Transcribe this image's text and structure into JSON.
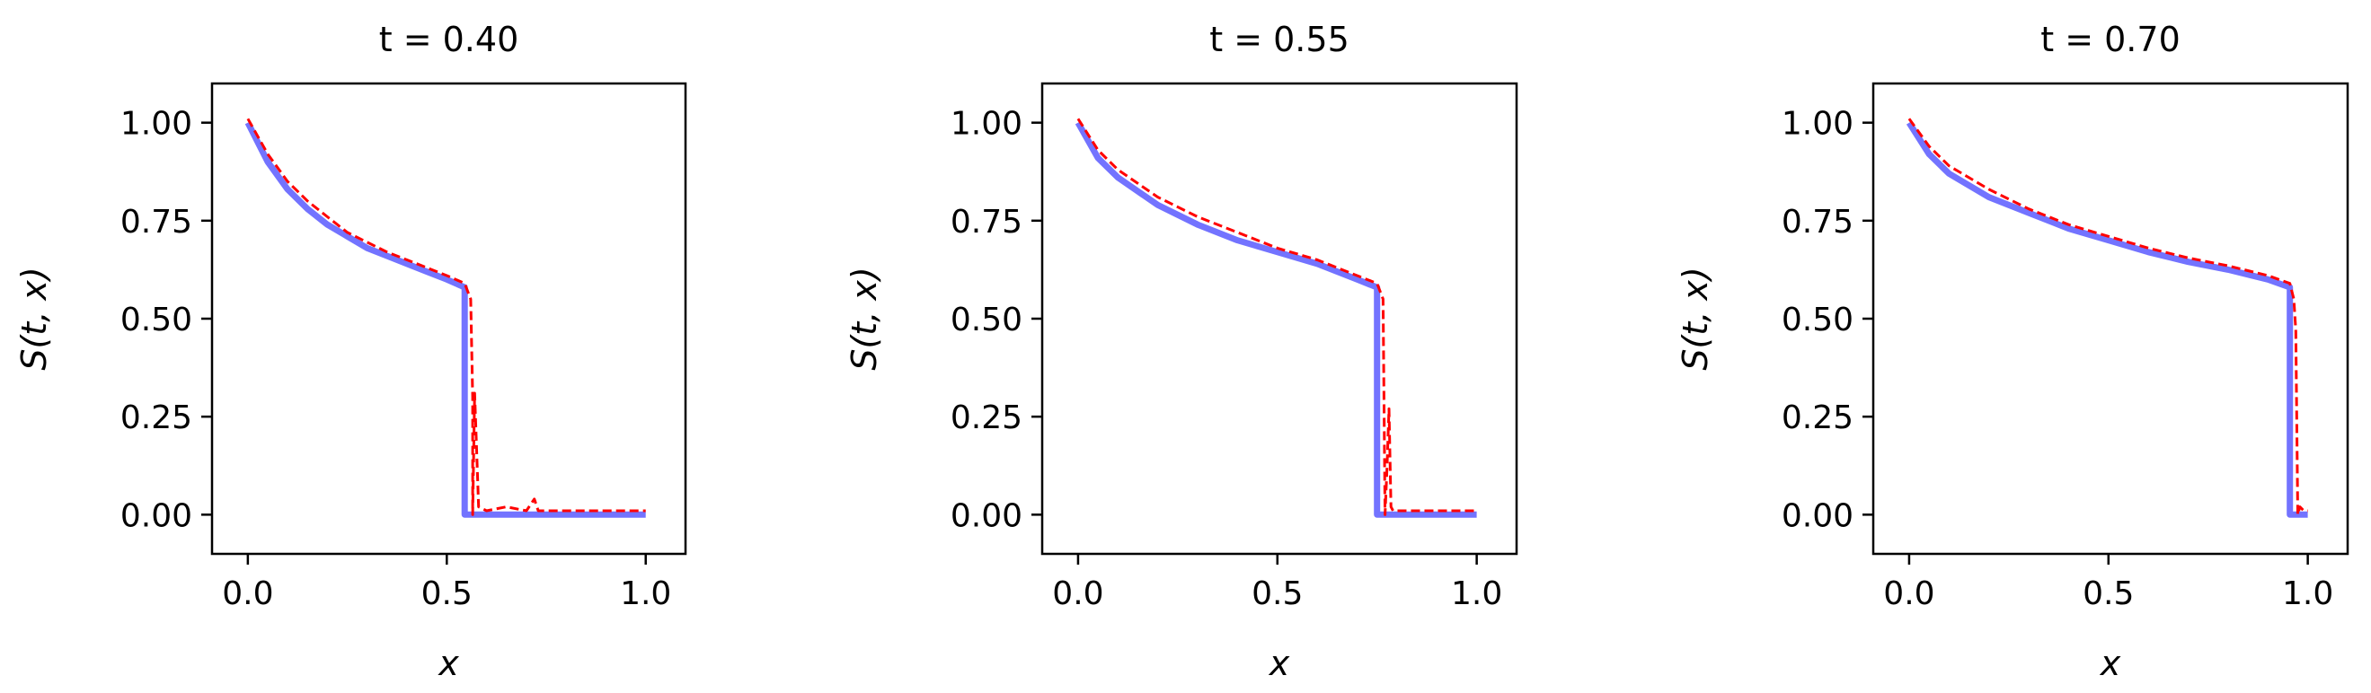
{
  "chart_data": [
    {
      "type": "line",
      "title": "t = 0.40",
      "xlabel": "x",
      "ylabel": "S(t, x)",
      "xlim": [
        -0.09,
        1.1
      ],
      "ylim": [
        -0.1,
        1.1
      ],
      "xticks": [
        0.0,
        0.5,
        1.0
      ],
      "xtick_labels": [
        "0.0",
        "0.5",
        "1.0"
      ],
      "yticks": [
        0.0,
        0.25,
        0.5,
        0.75,
        1.0
      ],
      "ytick_labels": [
        "0.00",
        "0.25",
        "0.50",
        "0.75",
        "1.00"
      ],
      "grid": false,
      "series": [
        {
          "color": "#5a5aff",
          "style": "solid",
          "x": [
            0.0,
            0.05,
            0.1,
            0.15,
            0.2,
            0.25,
            0.3,
            0.35,
            0.4,
            0.45,
            0.5,
            0.545,
            0.545,
            0.6,
            0.7,
            0.8,
            0.9,
            1.0
          ],
          "y": [
            1.0,
            0.9,
            0.83,
            0.78,
            0.74,
            0.71,
            0.68,
            0.66,
            0.64,
            0.62,
            0.6,
            0.58,
            0.0,
            0.0,
            0.0,
            0.0,
            0.0,
            0.0
          ]
        },
        {
          "color": "#ff0000",
          "style": "dashed",
          "x": [
            0.0,
            0.05,
            0.1,
            0.15,
            0.2,
            0.25,
            0.3,
            0.35,
            0.4,
            0.45,
            0.5,
            0.545,
            0.56,
            0.565,
            0.565,
            0.57,
            0.58,
            0.6,
            0.65,
            0.7,
            0.72,
            0.73,
            0.8,
            0.9,
            1.0
          ],
          "y": [
            1.01,
            0.92,
            0.85,
            0.8,
            0.76,
            0.72,
            0.695,
            0.67,
            0.65,
            0.63,
            0.61,
            0.59,
            0.55,
            0.3,
            0.0,
            0.31,
            0.02,
            0.01,
            0.02,
            0.01,
            0.04,
            0.01,
            0.01,
            0.01,
            0.01
          ]
        }
      ]
    },
    {
      "type": "line",
      "title": "t = 0.55",
      "xlabel": "x",
      "ylabel": "S(t, x)",
      "xlim": [
        -0.09,
        1.1
      ],
      "ylim": [
        -0.1,
        1.1
      ],
      "xticks": [
        0.0,
        0.5,
        1.0
      ],
      "xtick_labels": [
        "0.0",
        "0.5",
        "1.0"
      ],
      "yticks": [
        0.0,
        0.25,
        0.5,
        0.75,
        1.0
      ],
      "ytick_labels": [
        "0.00",
        "0.25",
        "0.50",
        "0.75",
        "1.00"
      ],
      "grid": false,
      "series": [
        {
          "color": "#5a5aff",
          "style": "solid",
          "x": [
            0.0,
            0.05,
            0.1,
            0.2,
            0.3,
            0.4,
            0.5,
            0.6,
            0.7,
            0.75,
            0.75,
            0.8,
            0.9,
            1.0
          ],
          "y": [
            1.0,
            0.91,
            0.86,
            0.79,
            0.74,
            0.7,
            0.67,
            0.64,
            0.6,
            0.58,
            0.0,
            0.0,
            0.0,
            0.0
          ]
        },
        {
          "color": "#ff0000",
          "style": "dashed",
          "x": [
            0.0,
            0.05,
            0.1,
            0.2,
            0.3,
            0.4,
            0.5,
            0.6,
            0.7,
            0.75,
            0.765,
            0.77,
            0.775,
            0.78,
            0.785,
            0.79,
            0.8,
            0.9,
            1.0
          ],
          "y": [
            1.01,
            0.93,
            0.88,
            0.81,
            0.76,
            0.72,
            0.68,
            0.65,
            0.61,
            0.59,
            0.55,
            0.0,
            0.12,
            0.27,
            0.02,
            0.01,
            0.01,
            0.01,
            0.01
          ]
        }
      ]
    },
    {
      "type": "line",
      "title": "t = 0.70",
      "xlabel": "x",
      "ylabel": "S(t, x)",
      "xlim": [
        -0.09,
        1.1
      ],
      "ylim": [
        -0.1,
        1.1
      ],
      "xticks": [
        0.0,
        0.5,
        1.0
      ],
      "xtick_labels": [
        "0.0",
        "0.5",
        "1.0"
      ],
      "yticks": [
        0.0,
        0.25,
        0.5,
        0.75,
        1.0
      ],
      "ytick_labels": [
        "0.00",
        "0.25",
        "0.50",
        "0.75",
        "1.00"
      ],
      "grid": false,
      "series": [
        {
          "color": "#5a5aff",
          "style": "solid",
          "x": [
            0.0,
            0.05,
            0.1,
            0.2,
            0.3,
            0.4,
            0.5,
            0.6,
            0.7,
            0.8,
            0.9,
            0.955,
            0.955,
            1.0
          ],
          "y": [
            1.0,
            0.92,
            0.87,
            0.81,
            0.77,
            0.73,
            0.7,
            0.67,
            0.645,
            0.625,
            0.6,
            0.58,
            0.0,
            0.0
          ]
        },
        {
          "color": "#ff0000",
          "style": "dashed",
          "x": [
            0.0,
            0.05,
            0.1,
            0.2,
            0.3,
            0.4,
            0.5,
            0.6,
            0.7,
            0.8,
            0.9,
            0.955,
            0.965,
            0.97,
            0.975,
            0.98,
            0.99,
            1.0
          ],
          "y": [
            1.01,
            0.94,
            0.89,
            0.83,
            0.78,
            0.74,
            0.71,
            0.68,
            0.655,
            0.635,
            0.61,
            0.59,
            0.55,
            0.47,
            0.0,
            0.02,
            0.01,
            0.01
          ]
        }
      ]
    }
  ]
}
